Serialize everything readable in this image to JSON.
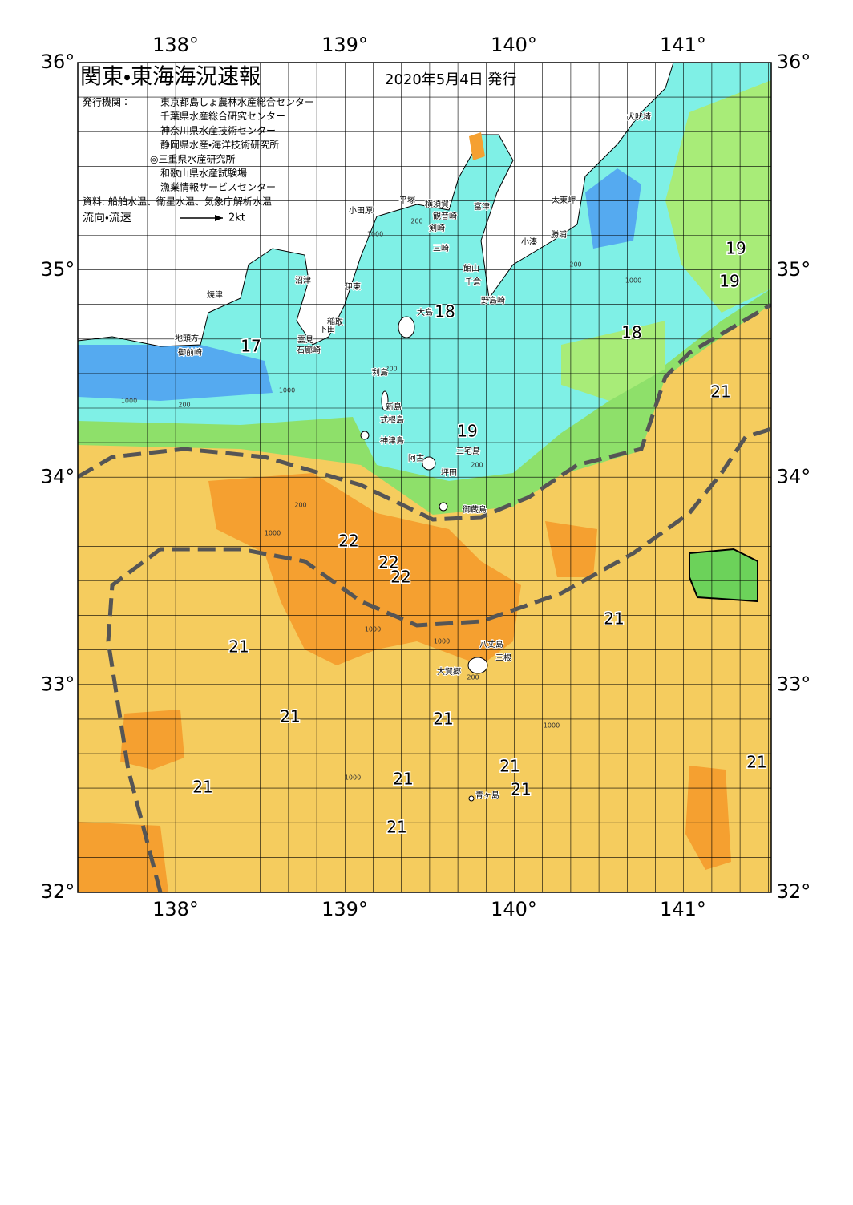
{
  "header": {
    "title": "関東・東海海況速報",
    "date": "2020年5月4日 発行",
    "issuer_label": "発行機関：",
    "issuers": [
      "東京都島しょ農林水産総合センター",
      "千葉県水産総合研究センター",
      "神奈川県水産技術センター",
      "静岡県水産・海洋技術研究所",
      "◎三重県水産研究所",
      "和歌山県水産試験場",
      "漁業情報サービスセンター"
    ],
    "source": "資料: 船舶水温、衛星水温、気象庁解析水温",
    "legend": {
      "label": "流向・流速",
      "speed": "2kt"
    }
  },
  "axes": {
    "longitude_labels": [
      "138°",
      "139°",
      "140°",
      "141°"
    ],
    "latitude_labels": [
      "36°",
      "35°",
      "34°",
      "33°",
      "32°"
    ]
  },
  "place_names": [
    "小田原",
    "平塚",
    "横須賀",
    "観音崎",
    "富津",
    "剣崎",
    "三崎",
    "館山",
    "千倉",
    "野島崎",
    "小湊",
    "勝浦",
    "太東岬",
    "犬吠埼",
    "沼津",
    "伊東",
    "焼津",
    "大島",
    "稲取",
    "下田",
    "雲見",
    "石廊崎",
    "地頭方",
    "御前崎",
    "利島",
    "新島",
    "式根島",
    "神津島",
    "三宅島",
    "御蔵島",
    "坪田",
    "阿古",
    "八丈島",
    "三根",
    "大賀郷",
    "青ヶ島"
  ],
  "temperature_labels": [
    "17",
    "18",
    "18",
    "19",
    "19",
    "19",
    "21",
    "22",
    "22",
    "22",
    "21",
    "21",
    "21",
    "21",
    "21",
    "21",
    "21",
    "21",
    "21",
    "21"
  ],
  "depth_labels": [
    "1000",
    "200",
    "1000",
    "200",
    "1000",
    "200",
    "1000",
    "200",
    "1000",
    "1000",
    "1000",
    "200",
    "1000",
    "200",
    "1000",
    "200"
  ]
}
